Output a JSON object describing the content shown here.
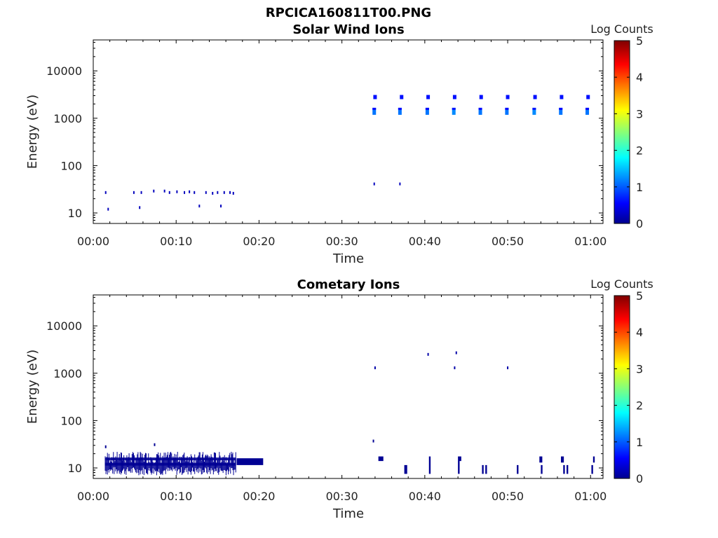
{
  "figure": {
    "title": "RPCICA160811T00.PNG"
  },
  "chart_data": [
    {
      "type": "heatmap",
      "title": "Solar Wind Ions",
      "xlabel": "Time",
      "ylabel": "Energy (eV)",
      "x_ticks": [
        "00:00",
        "00:10",
        "00:20",
        "00:30",
        "00:40",
        "00:50",
        "01:00"
      ],
      "y_ticks": [
        "10",
        "100",
        "1000",
        "10000"
      ],
      "y_scale": "log",
      "xlim_minutes": [
        0,
        61.5
      ],
      "ylim_eV": [
        6,
        45000
      ],
      "colorbar": {
        "label": "Log Counts",
        "ticks": [
          "0",
          "1",
          "2",
          "3",
          "4",
          "5"
        ],
        "range": [
          0,
          5
        ],
        "colormap": "jet"
      },
      "points": [
        {
          "t": 1.5,
          "e": 27,
          "v": 0.3
        },
        {
          "t": 1.8,
          "e": 12,
          "v": 0.3
        },
        {
          "t": 4.9,
          "e": 27,
          "v": 0.3
        },
        {
          "t": 5.6,
          "e": 13,
          "v": 0.3
        },
        {
          "t": 5.8,
          "e": 27,
          "v": 0.3
        },
        {
          "t": 7.3,
          "e": 29,
          "v": 0.3
        },
        {
          "t": 8.6,
          "e": 29,
          "v": 0.3
        },
        {
          "t": 9.2,
          "e": 27,
          "v": 0.3
        },
        {
          "t": 10.1,
          "e": 28,
          "v": 0.3
        },
        {
          "t": 11.0,
          "e": 27,
          "v": 0.3
        },
        {
          "t": 11.6,
          "e": 28,
          "v": 0.3
        },
        {
          "t": 12.2,
          "e": 27,
          "v": 0.3
        },
        {
          "t": 12.8,
          "e": 14,
          "v": 0.3
        },
        {
          "t": 13.6,
          "e": 27,
          "v": 0.3
        },
        {
          "t": 14.4,
          "e": 26,
          "v": 0.3
        },
        {
          "t": 15.0,
          "e": 27,
          "v": 0.3
        },
        {
          "t": 15.4,
          "e": 14,
          "v": 0.3
        },
        {
          "t": 15.8,
          "e": 27,
          "v": 0.3
        },
        {
          "t": 16.5,
          "e": 27,
          "v": 0.3
        },
        {
          "t": 16.9,
          "e": 26,
          "v": 0.3
        },
        {
          "t": 33.9,
          "e": 41,
          "v": 0.3
        },
        {
          "t": 37.0,
          "e": 41,
          "v": 0.3
        },
        {
          "t": 34.0,
          "e": 2800,
          "v": 0.7
        },
        {
          "t": 33.9,
          "e": 1400,
          "v": 1.2
        },
        {
          "t": 37.2,
          "e": 2800,
          "v": 0.7
        },
        {
          "t": 37.0,
          "e": 1400,
          "v": 1.2
        },
        {
          "t": 40.4,
          "e": 2800,
          "v": 0.7
        },
        {
          "t": 40.3,
          "e": 1400,
          "v": 1.2
        },
        {
          "t": 43.6,
          "e": 2800,
          "v": 0.7
        },
        {
          "t": 43.5,
          "e": 1400,
          "v": 1.3
        },
        {
          "t": 46.8,
          "e": 2800,
          "v": 0.7
        },
        {
          "t": 46.7,
          "e": 1400,
          "v": 1.2
        },
        {
          "t": 50.0,
          "e": 2800,
          "v": 0.7
        },
        {
          "t": 49.9,
          "e": 1400,
          "v": 1.2
        },
        {
          "t": 53.3,
          "e": 2800,
          "v": 0.7
        },
        {
          "t": 53.2,
          "e": 1400,
          "v": 1.3
        },
        {
          "t": 56.5,
          "e": 2800,
          "v": 0.7
        },
        {
          "t": 56.4,
          "e": 1400,
          "v": 1.2
        },
        {
          "t": 59.7,
          "e": 2800,
          "v": 0.7
        },
        {
          "t": 59.6,
          "e": 1400,
          "v": 1.2
        }
      ]
    },
    {
      "type": "heatmap",
      "title": "Cometary Ions",
      "xlabel": "Time",
      "ylabel": "Energy (eV)",
      "x_ticks": [
        "00:00",
        "00:10",
        "00:20",
        "00:30",
        "00:40",
        "00:50",
        "01:00"
      ],
      "y_ticks": [
        "10",
        "100",
        "1000",
        "10000"
      ],
      "y_scale": "log",
      "xlim_minutes": [
        0,
        61.5
      ],
      "ylim_eV": [
        6,
        45000
      ],
      "colorbar": {
        "label": "Log Counts",
        "ticks": [
          "0",
          "1",
          "2",
          "3",
          "4",
          "5"
        ],
        "range": [
          0,
          5
        ],
        "colormap": "jet"
      },
      "bands": [
        {
          "t0": 1.4,
          "t1": 17.2,
          "e0": 7,
          "e1": 22,
          "v": 0.1,
          "style": "hatched"
        },
        {
          "t0": 17.3,
          "t1": 20.5,
          "e0": 11.5,
          "e1": 16,
          "v": 0.1,
          "style": "solid"
        }
      ],
      "points": [
        {
          "t": 1.5,
          "e": 28,
          "v": 0.1
        },
        {
          "t": 7.4,
          "e": 31,
          "v": 0.1
        },
        {
          "t": 33.8,
          "e": 37,
          "v": 0.1
        },
        {
          "t": 34.0,
          "e": 1300,
          "v": 0.2
        },
        {
          "t": 40.4,
          "e": 2500,
          "v": 0.2
        },
        {
          "t": 43.6,
          "e": 1300,
          "v": 0.2
        },
        {
          "t": 43.8,
          "e": 2700,
          "v": 0.2
        },
        {
          "t": 50.0,
          "e": 1300,
          "v": 0.2
        }
      ],
      "bars": [
        {
          "t": 34.7,
          "e0": 14,
          "e1": 17.5,
          "w": 0.6,
          "v": 0.1
        },
        {
          "t": 37.7,
          "e0": 7.5,
          "e1": 11.5,
          "w": 0.35,
          "v": 0.1
        },
        {
          "t": 40.6,
          "e0": 7.5,
          "e1": 17.5,
          "w": 0.2,
          "v": 0.1
        },
        {
          "t": 44.1,
          "e0": 7.5,
          "e1": 17.5,
          "w": 0.2,
          "v": 0.1
        },
        {
          "t": 44.3,
          "e0": 14,
          "e1": 17.5,
          "w": 0.2,
          "v": 0.1
        },
        {
          "t": 47.0,
          "e0": 7.5,
          "e1": 11.5,
          "w": 0.2,
          "v": 0.1
        },
        {
          "t": 47.4,
          "e0": 7.5,
          "e1": 11.5,
          "w": 0.2,
          "v": 0.1
        },
        {
          "t": 51.2,
          "e0": 7.5,
          "e1": 11.5,
          "w": 0.2,
          "v": 0.1
        },
        {
          "t": 54.0,
          "e0": 13,
          "e1": 17.5,
          "w": 0.35,
          "v": 0.1
        },
        {
          "t": 54.1,
          "e0": 7.5,
          "e1": 11.5,
          "w": 0.2,
          "v": 0.1
        },
        {
          "t": 56.6,
          "e0": 13,
          "e1": 17.5,
          "w": 0.35,
          "v": 0.1
        },
        {
          "t": 56.8,
          "e0": 7.5,
          "e1": 11.5,
          "w": 0.2,
          "v": 0.1
        },
        {
          "t": 57.2,
          "e0": 7.5,
          "e1": 11.5,
          "w": 0.2,
          "v": 0.1
        },
        {
          "t": 60.2,
          "e0": 7.5,
          "e1": 11.5,
          "w": 0.2,
          "v": 0.1
        },
        {
          "t": 60.4,
          "e0": 13,
          "e1": 17.5,
          "w": 0.2,
          "v": 0.1
        }
      ]
    }
  ]
}
